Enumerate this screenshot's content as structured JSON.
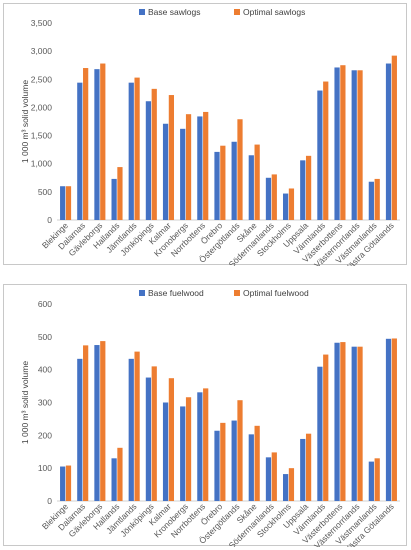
{
  "chart_data": [
    {
      "type": "bar",
      "ylabel": "1 000 m³ solid volume",
      "ylim": [
        0,
        3500
      ],
      "ytick_step": 500,
      "legend_position": "top-center",
      "grid": false,
      "categories": [
        "Blekinge",
        "Dalarnas",
        "Gävleborgs",
        "Hallands",
        "Jämtlands",
        "Jönköpings",
        "Kalmar",
        "Kronobergs",
        "Norrbottens",
        "Örebro",
        "Östergötlands",
        "Skåne",
        "Södermanlands",
        "Stockholms",
        "Uppsala",
        "Värmlands",
        "Västerbottens",
        "Västernorrlands",
        "Västmanlands",
        "Västra Götalands"
      ],
      "series": [
        {
          "name": "Base sawlogs",
          "color": "#4472c4",
          "values": [
            600,
            2440,
            2680,
            730,
            2440,
            2110,
            1710,
            1620,
            1840,
            1210,
            1390,
            1150,
            750,
            470,
            1060,
            2300,
            2710,
            2660,
            680,
            2780
          ]
        },
        {
          "name": "Optimal sawlogs",
          "color": "#ed7d31",
          "values": [
            600,
            2700,
            2780,
            940,
            2530,
            2330,
            2220,
            1880,
            1920,
            1320,
            1790,
            1340,
            810,
            560,
            1140,
            2460,
            2750,
            2660,
            730,
            2920
          ]
        }
      ]
    },
    {
      "type": "bar",
      "ylabel": "1 000 m³ solid volume",
      "ylim": [
        0,
        600
      ],
      "ytick_step": 100,
      "legend_position": "top-center",
      "grid": false,
      "categories": [
        "Blekinge",
        "Dalarnas",
        "Gävleborgs",
        "Hallands",
        "Jämtlands",
        "Jönköpings",
        "Kalmar",
        "Kronobergs",
        "Norrbottens",
        "Örebro",
        "Östergötlands",
        "Skåne",
        "Södermanlands",
        "Stockholms",
        "Uppsala",
        "Värmlands",
        "Västerbottens",
        "Västernorrlands",
        "Västmanlands",
        "Västra Götalands"
      ],
      "series": [
        {
          "name": "Base fuelwood",
          "color": "#4472c4",
          "values": [
            105,
            433,
            475,
            130,
            433,
            376,
            300,
            288,
            331,
            214,
            245,
            203,
            133,
            82,
            189,
            409,
            482,
            470,
            120,
            494
          ]
        },
        {
          "name": "Optimal fuelwood",
          "color": "#ed7d31",
          "values": [
            108,
            474,
            487,
            162,
            455,
            410,
            374,
            316,
            343,
            238,
            307,
            229,
            148,
            100,
            205,
            446,
            484,
            470,
            130,
            495
          ]
        }
      ]
    }
  ]
}
